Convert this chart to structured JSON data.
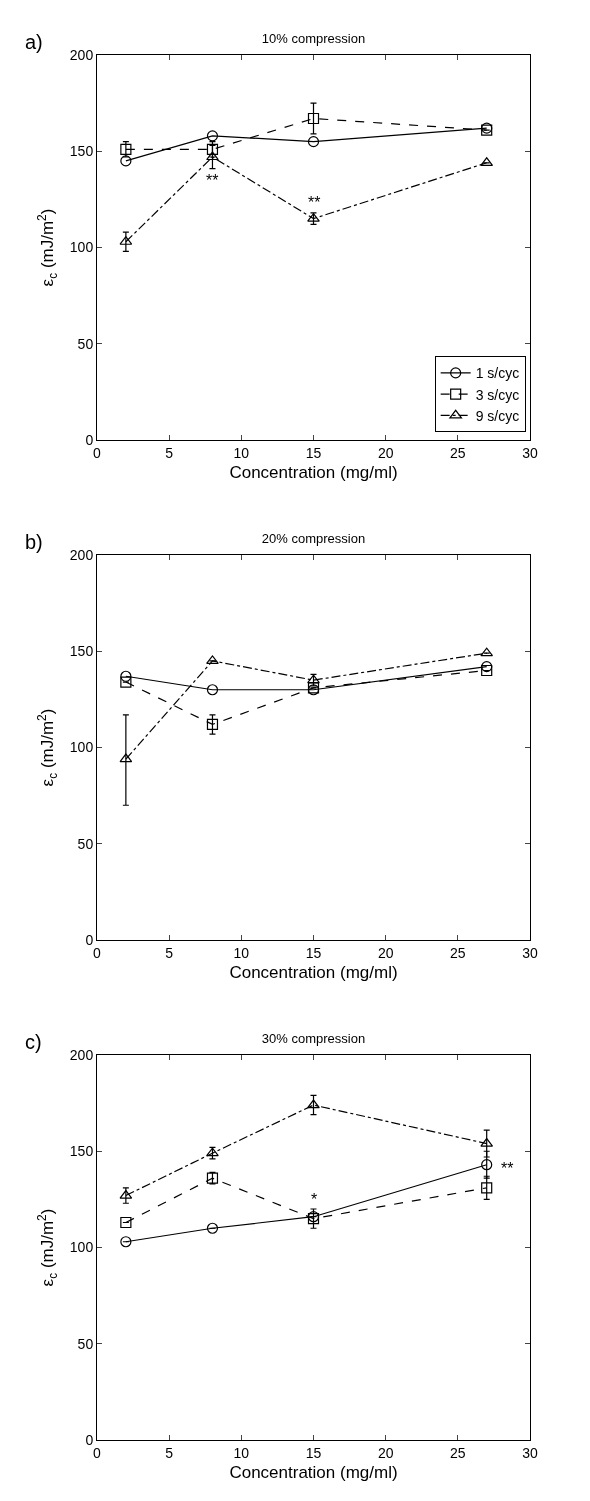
{
  "chart_data": [
    {
      "type": "line",
      "title": "10% compression",
      "xlabel": "Concentration (mg/ml)",
      "ylabel": "ε$_{c}$ (mJ/m$^{2}$)",
      "x": [
        2,
        8,
        15,
        27
      ],
      "xlim": [
        0,
        30
      ],
      "xticks": [
        0,
        5,
        10,
        15,
        20,
        25,
        30
      ],
      "ylim": [
        0,
        200
      ],
      "yticks": [
        0,
        50,
        100,
        150,
        200
      ],
      "legend": "bottom right",
      "annotations": [
        "a)",
        {
          "text": "**",
          "x": 8,
          "y": 141
        },
        {
          "text": "**",
          "x": 15,
          "y": 118
        }
      ],
      "series": [
        {
          "name": "1 s/cyc",
          "color": "#000000",
          "marker": "circle",
          "line_style": "solid",
          "values": [
            145,
            158,
            155,
            162
          ],
          "errors": [
            null,
            null,
            null,
            null
          ]
        },
        {
          "name": "3 s/cyc",
          "color": "#000000",
          "marker": "square",
          "line_style": "dashed",
          "values": [
            151,
            151,
            167,
            161
          ],
          "errors": [
            4,
            4,
            8,
            null
          ]
        },
        {
          "name": "9 s/cyc",
          "color": "#000000",
          "marker": "triangle",
          "line_style": "dashdot",
          "values": [
            103,
            147,
            115,
            144
          ],
          "errors": [
            5,
            6,
            3,
            null
          ]
        }
      ]
    },
    {
      "type": "line",
      "title": "20% compression",
      "xlabel": "Concentration (mg/ml)",
      "ylabel": "ε$_{c}$ (mJ/m$^{2}$)",
      "x": [
        2,
        8,
        15,
        27
      ],
      "xlim": [
        0,
        30
      ],
      "xticks": [
        0,
        5,
        10,
        15,
        20,
        25,
        30
      ],
      "ylim": [
        0,
        200
      ],
      "yticks": [
        0,
        50,
        100,
        150,
        200
      ],
      "annotations": [
        "b)"
      ],
      "series": [
        {
          "color": "#000000",
          "marker": "circle",
          "line_style": "solid",
          "values": [
            137,
            130,
            130,
            142
          ],
          "errors": [
            null,
            null,
            null,
            null
          ]
        },
        {
          "color": "#000000",
          "marker": "square",
          "line_style": "dashed",
          "values": [
            134,
            112,
            131,
            140
          ],
          "errors": [
            null,
            5,
            null,
            null
          ]
        },
        {
          "color": "#000000",
          "marker": "triangle",
          "line_style": "dashdot",
          "values": [
            94,
            145,
            135,
            149
          ],
          "errors": [
            [
              70,
              117
            ],
            null,
            3,
            null
          ]
        }
      ]
    },
    {
      "type": "line",
      "title": "30% compression",
      "xlabel": "Concentration (mg/ml)",
      "ylabel": "ε$_{c}$ (mJ/m$^{2}$)",
      "x": [
        2,
        8,
        15,
        27
      ],
      "xlim": [
        0,
        30
      ],
      "xticks": [
        0,
        5,
        10,
        15,
        20,
        25,
        30
      ],
      "ylim": [
        0,
        200
      ],
      "yticks": [
        0,
        50,
        100,
        150,
        200
      ],
      "annotations": [
        "c)",
        {
          "text": "*",
          "x": 15,
          "y": 120
        },
        {
          "text": "**",
          "x": 27,
          "y": 143
        }
      ],
      "series": [
        {
          "color": "#000000",
          "marker": "circle",
          "line_style": "solid",
          "values": [
            103,
            110,
            116,
            143
          ],
          "errors": [
            null,
            null,
            null,
            7
          ]
        },
        {
          "color": "#000000",
          "marker": "square",
          "line_style": "dashed",
          "values": [
            113,
            136,
            115,
            131
          ],
          "errors": [
            null,
            3,
            5,
            6
          ]
        },
        {
          "color": "#000000",
          "marker": "triangle",
          "line_style": "dashdot",
          "values": [
            127,
            149,
            174,
            154
          ],
          "errors": [
            4,
            3,
            5,
            7
          ]
        }
      ]
    }
  ]
}
